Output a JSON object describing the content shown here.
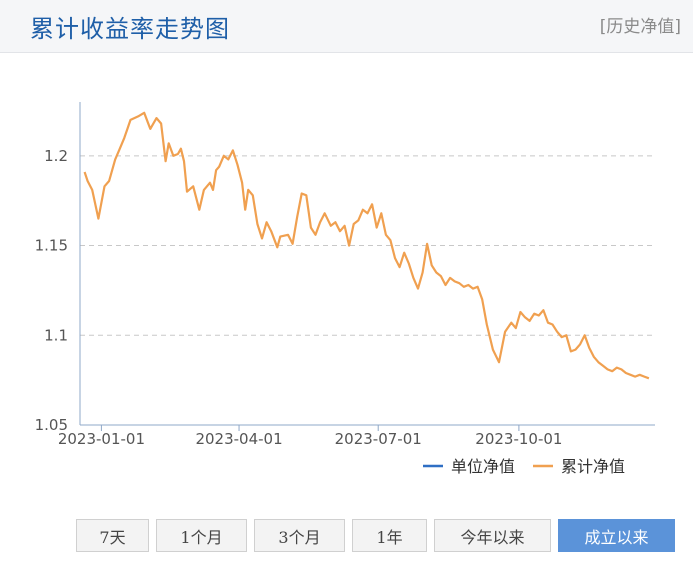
{
  "header": {
    "title": "累计收益率走势图",
    "history_link": "[历史净值]"
  },
  "chart_data": {
    "type": "line",
    "x_ticks": [
      "2023-01-01",
      "2023-04-01",
      "2023-07-01",
      "2023-10-01"
    ],
    "y_ticks": [
      "1.05",
      "1.1",
      "1.15",
      "1.2"
    ],
    "ylim": [
      1.05,
      1.23
    ],
    "xlim": [
      "2022-12-18",
      "2023-12-29"
    ],
    "grid": "horizontal dashed",
    "legend_position": "bottom-right",
    "series": [
      {
        "name": "单位净值",
        "color": "#2f6fc4",
        "values": []
      },
      {
        "name": "累计净值",
        "color": "#f0a050",
        "x": [
          "2022-12-21",
          "2022-12-23",
          "2022-12-26",
          "2022-12-30",
          "2023-01-03",
          "2023-01-06",
          "2023-01-10",
          "2023-01-13",
          "2023-01-16",
          "2023-01-20",
          "2023-01-25",
          "2023-01-29",
          "2023-02-02",
          "2023-02-06",
          "2023-02-09",
          "2023-02-12",
          "2023-02-14",
          "2023-02-17",
          "2023-02-20",
          "2023-02-22",
          "2023-02-24",
          "2023-02-26",
          "2023-03-02",
          "2023-03-06",
          "2023-03-09",
          "2023-03-13",
          "2023-03-15",
          "2023-03-17",
          "2023-03-19",
          "2023-03-22",
          "2023-03-25",
          "2023-03-28",
          "2023-03-31",
          "2023-04-03",
          "2023-04-05",
          "2023-04-07",
          "2023-04-10",
          "2023-04-13",
          "2023-04-16",
          "2023-04-19",
          "2023-04-22",
          "2023-04-26",
          "2023-04-28",
          "2023-05-03",
          "2023-05-06",
          "2023-05-09",
          "2023-05-12",
          "2023-05-15",
          "2023-05-18",
          "2023-05-21",
          "2023-05-24",
          "2023-05-27",
          "2023-05-31",
          "2023-06-03",
          "2023-06-06",
          "2023-06-09",
          "2023-06-12",
          "2023-06-15",
          "2023-06-18",
          "2023-06-21",
          "2023-06-24",
          "2023-06-27",
          "2023-06-30",
          "2023-07-03",
          "2023-07-06",
          "2023-07-09",
          "2023-07-12",
          "2023-07-15",
          "2023-07-18",
          "2023-07-21",
          "2023-07-24",
          "2023-07-27",
          "2023-07-30",
          "2023-08-02",
          "2023-08-05",
          "2023-08-08",
          "2023-08-11",
          "2023-08-14",
          "2023-08-17",
          "2023-08-20",
          "2023-08-23",
          "2023-08-26",
          "2023-08-29",
          "2023-09-01",
          "2023-09-04",
          "2023-09-07",
          "2023-09-10",
          "2023-09-14",
          "2023-09-18",
          "2023-09-22",
          "2023-09-26",
          "2023-09-29",
          "2023-10-02",
          "2023-10-05",
          "2023-10-08",
          "2023-10-11",
          "2023-10-14",
          "2023-10-17",
          "2023-10-20",
          "2023-10-23",
          "2023-10-26",
          "2023-10-29",
          "2023-11-01",
          "2023-11-04",
          "2023-11-07",
          "2023-11-10",
          "2023-11-13",
          "2023-11-16",
          "2023-11-19",
          "2023-11-22",
          "2023-11-25",
          "2023-11-28",
          "2023-12-01",
          "2023-12-04",
          "2023-12-07",
          "2023-12-10",
          "2023-12-13",
          "2023-12-16",
          "2023-12-19",
          "2023-12-22",
          "2023-12-25"
        ],
        "values": [
          1.191,
          1.186,
          1.181,
          1.165,
          1.183,
          1.186,
          1.198,
          1.204,
          1.21,
          1.22,
          1.222,
          1.224,
          1.215,
          1.221,
          1.218,
          1.197,
          1.207,
          1.2,
          1.201,
          1.204,
          1.197,
          1.18,
          1.183,
          1.17,
          1.181,
          1.185,
          1.181,
          1.192,
          1.194,
          1.2,
          1.198,
          1.203,
          1.195,
          1.185,
          1.17,
          1.181,
          1.178,
          1.162,
          1.154,
          1.163,
          1.158,
          1.149,
          1.155,
          1.156,
          1.151,
          1.166,
          1.179,
          1.178,
          1.16,
          1.156,
          1.163,
          1.168,
          1.161,
          1.163,
          1.158,
          1.161,
          1.15,
          1.162,
          1.164,
          1.17,
          1.168,
          1.173,
          1.16,
          1.168,
          1.156,
          1.153,
          1.143,
          1.138,
          1.146,
          1.14,
          1.132,
          1.126,
          1.135,
          1.151,
          1.139,
          1.135,
          1.133,
          1.128,
          1.132,
          1.13,
          1.129,
          1.127,
          1.128,
          1.126,
          1.127,
          1.12,
          1.106,
          1.092,
          1.085,
          1.102,
          1.107,
          1.104,
          1.113,
          1.11,
          1.108,
          1.112,
          1.111,
          1.114,
          1.107,
          1.106,
          1.102,
          1.099,
          1.1,
          1.091,
          1.092,
          1.095,
          1.1,
          1.093,
          1.088,
          1.085,
          1.083,
          1.081,
          1.08,
          1.082,
          1.081,
          1.079,
          1.078,
          1.077,
          1.078,
          1.077,
          1.076
        ]
      }
    ]
  },
  "range_buttons": [
    {
      "label": "7天",
      "active": false
    },
    {
      "label": "1个月",
      "active": false
    },
    {
      "label": "3个月",
      "active": false
    },
    {
      "label": "1年",
      "active": false
    },
    {
      "label": "今年以来",
      "active": false
    },
    {
      "label": "成立以来",
      "active": true
    }
  ]
}
